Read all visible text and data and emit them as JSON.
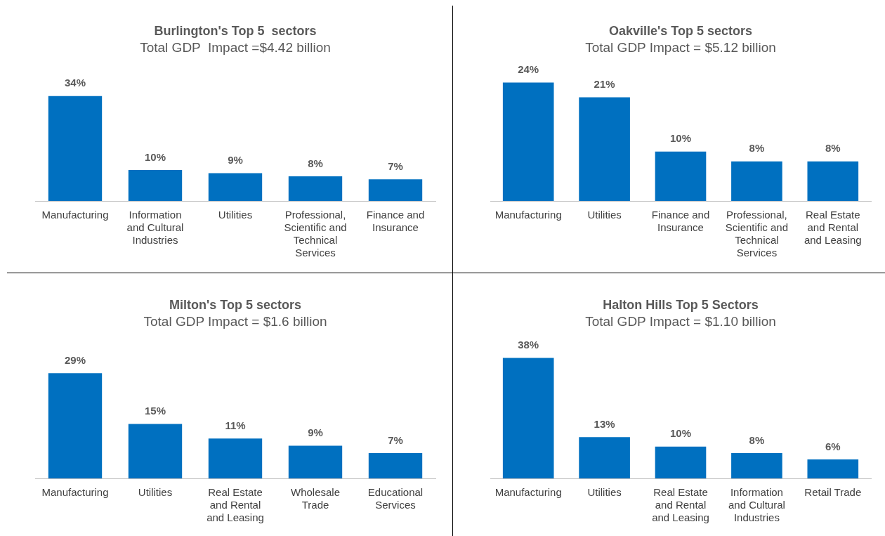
{
  "chart_data": [
    {
      "type": "bar",
      "title": "Burlington's Top 5  sectors",
      "subtitle": "Total GDP  Impact =$4.42 billion",
      "categories": [
        "Manufacturing",
        "Information and Cultural Industries",
        "Utilities",
        "Professional, Scientific and Technical Services",
        "Finance and Insurance"
      ],
      "values": [
        34,
        10,
        9,
        8,
        7
      ],
      "value_labels": [
        "34%",
        "10%",
        "9%",
        "8%",
        "7%"
      ],
      "color": "#0070c0",
      "grid": false,
      "legend": false
    },
    {
      "type": "bar",
      "title": "Oakville's Top 5 sectors",
      "subtitle": "Total GDP Impact = $5.12 billion",
      "categories": [
        "Manufacturing",
        "Utilities",
        "Finance and Insurance",
        "Professional, Scientific and Technical Services",
        "Real Estate and Rental and Leasing"
      ],
      "values": [
        24,
        21,
        10,
        8,
        8
      ],
      "value_labels": [
        "24%",
        "21%",
        "10%",
        "8%",
        "8%"
      ],
      "color": "#0070c0",
      "grid": false,
      "legend": false
    },
    {
      "type": "bar",
      "title": "Milton's Top 5 sectors",
      "subtitle": "Total GDP Impact = $1.6 billion",
      "categories": [
        "Manufacturing",
        "Utilities",
        "Real Estate and Rental and Leasing",
        "Wholesale Trade",
        "Educational Services"
      ],
      "values": [
        29,
        15,
        11,
        9,
        7
      ],
      "value_labels": [
        "29%",
        "15%",
        "11%",
        "9%",
        "7%"
      ],
      "color": "#0070c0",
      "grid": false,
      "legend": false
    },
    {
      "type": "bar",
      "title": "Halton Hills Top 5 Sectors",
      "subtitle": "Total GDP Impact = $1.10 billion",
      "categories": [
        "Manufacturing",
        "Utilities",
        "Real Estate and Rental and Leasing",
        "Information and Cultural Industries",
        "Retail Trade"
      ],
      "values": [
        38,
        13,
        10,
        8,
        6
      ],
      "value_labels": [
        "38%",
        "13%",
        "10%",
        "8%",
        "6%"
      ],
      "color": "#0070c0",
      "grid": false,
      "legend": false
    }
  ]
}
